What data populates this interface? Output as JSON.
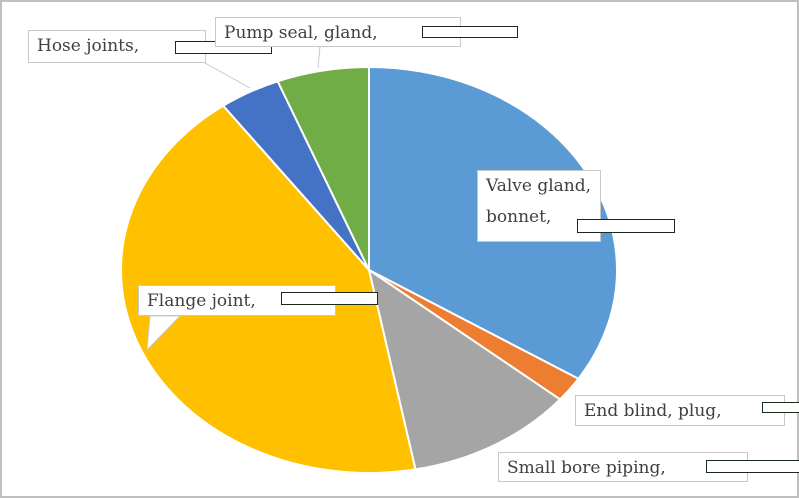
{
  "chart_data": {
    "type": "pie",
    "categories": [
      "Valve gland, bonnet,",
      "End blind, plug,",
      "Small bore piping,",
      "Flange joint,",
      "Hose joints,",
      "Pump seal, gland,"
    ],
    "values": [
      34,
      2,
      11,
      43,
      4,
      6
    ],
    "colors": [
      "#5b9bd5",
      "#ed7d31",
      "#a5a5a5",
      "#ffc000",
      "#4472c4",
      "#70ad47"
    ]
  }
}
